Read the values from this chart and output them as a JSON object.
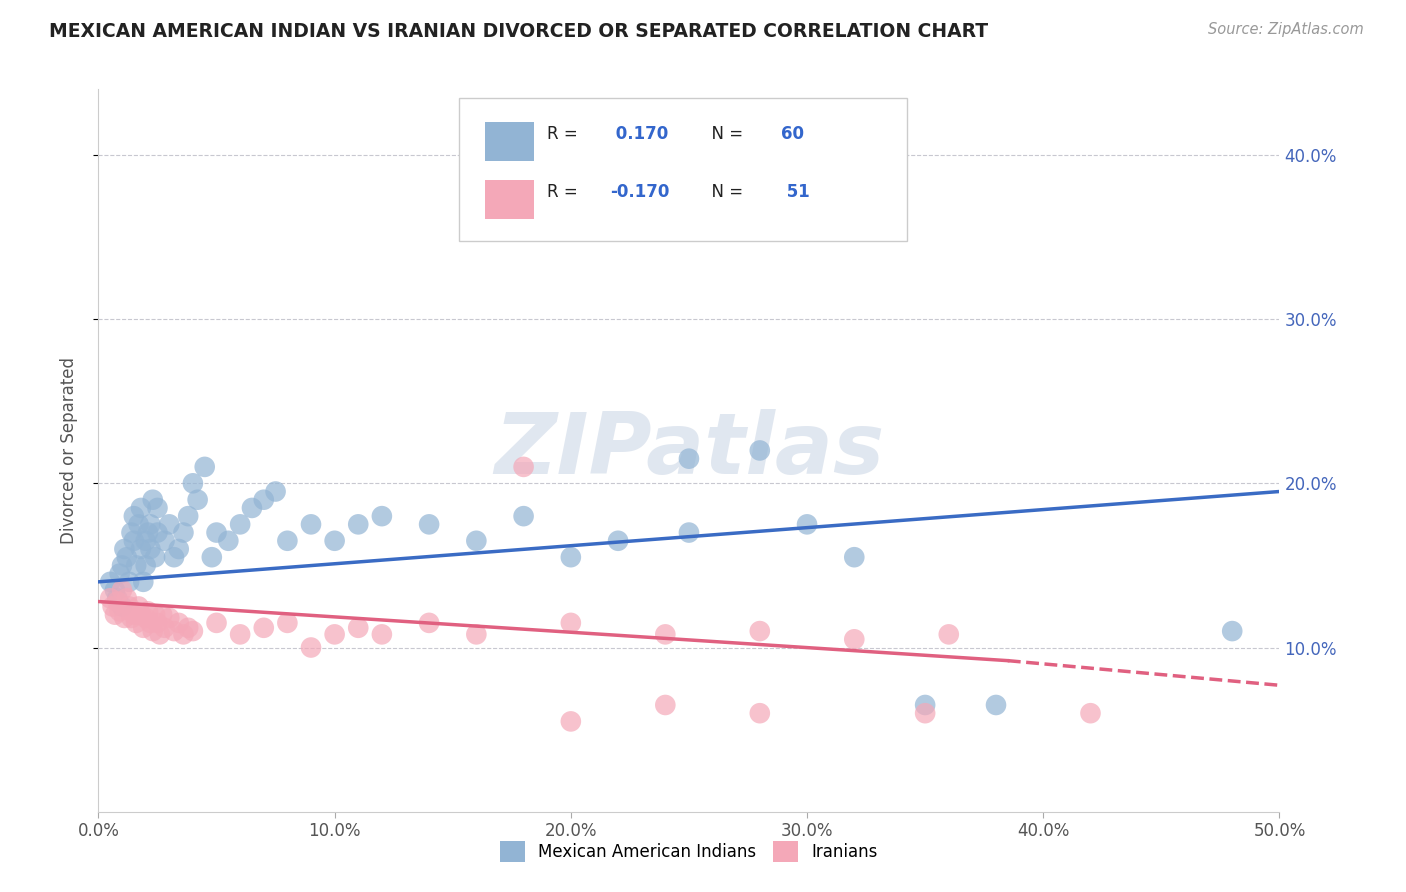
{
  "title": "MEXICAN AMERICAN INDIAN VS IRANIAN DIVORCED OR SEPARATED CORRELATION CHART",
  "source": "Source: ZipAtlas.com",
  "ylabel": "Divorced or Separated",
  "xlim": [
    0.0,
    0.5
  ],
  "ylim": [
    0.0,
    0.44
  ],
  "xtick_vals": [
    0.0,
    0.1,
    0.2,
    0.3,
    0.4,
    0.5
  ],
  "xtick_labels": [
    "0.0%",
    "10.0%",
    "20.0%",
    "30.0%",
    "40.0%",
    "50.0%"
  ],
  "ytick_vals": [
    0.1,
    0.2,
    0.3,
    0.4
  ],
  "ytick_labels": [
    "10.0%",
    "20.0%",
    "30.0%",
    "40.0%"
  ],
  "blue_R": 0.17,
  "blue_N": 60,
  "pink_R": -0.17,
  "pink_N": 51,
  "blue_color": "#92b4d4",
  "pink_color": "#f4a8b8",
  "blue_line_color": "#3a6bc4",
  "pink_line_color": "#e06080",
  "blue_line": {
    "x0": 0.0,
    "x1": 0.5,
    "y0": 0.14,
    "y1": 0.195
  },
  "pink_line_solid": {
    "x0": 0.0,
    "x1": 0.385,
    "y0": 0.128,
    "y1": 0.092
  },
  "pink_line_dash": {
    "x0": 0.385,
    "x1": 0.5,
    "y0": 0.092,
    "y1": 0.077
  },
  "watermark": "ZIPatlas",
  "blue_scatter_x": [
    0.005,
    0.007,
    0.008,
    0.009,
    0.01,
    0.01,
    0.011,
    0.012,
    0.013,
    0.014,
    0.015,
    0.015,
    0.016,
    0.017,
    0.018,
    0.018,
    0.019,
    0.02,
    0.02,
    0.021,
    0.022,
    0.022,
    0.023,
    0.024,
    0.025,
    0.025,
    0.028,
    0.03,
    0.032,
    0.034,
    0.036,
    0.038,
    0.04,
    0.042,
    0.045,
    0.048,
    0.05,
    0.055,
    0.06,
    0.065,
    0.07,
    0.075,
    0.08,
    0.09,
    0.1,
    0.11,
    0.12,
    0.14,
    0.16,
    0.18,
    0.2,
    0.22,
    0.25,
    0.28,
    0.3,
    0.32,
    0.35,
    0.38,
    0.48,
    0.25
  ],
  "blue_scatter_y": [
    0.14,
    0.135,
    0.13,
    0.145,
    0.15,
    0.125,
    0.16,
    0.155,
    0.14,
    0.17,
    0.165,
    0.18,
    0.15,
    0.175,
    0.16,
    0.185,
    0.14,
    0.15,
    0.165,
    0.17,
    0.16,
    0.175,
    0.19,
    0.155,
    0.17,
    0.185,
    0.165,
    0.175,
    0.155,
    0.16,
    0.17,
    0.18,
    0.2,
    0.19,
    0.21,
    0.155,
    0.17,
    0.165,
    0.175,
    0.185,
    0.19,
    0.195,
    0.165,
    0.175,
    0.165,
    0.175,
    0.18,
    0.175,
    0.165,
    0.18,
    0.155,
    0.165,
    0.17,
    0.22,
    0.175,
    0.155,
    0.065,
    0.065,
    0.11,
    0.215
  ],
  "pink_scatter_x": [
    0.005,
    0.006,
    0.007,
    0.008,
    0.009,
    0.01,
    0.011,
    0.012,
    0.013,
    0.014,
    0.015,
    0.016,
    0.017,
    0.018,
    0.019,
    0.02,
    0.021,
    0.022,
    0.023,
    0.024,
    0.025,
    0.026,
    0.027,
    0.028,
    0.03,
    0.032,
    0.034,
    0.036,
    0.038,
    0.04,
    0.05,
    0.06,
    0.07,
    0.08,
    0.09,
    0.1,
    0.11,
    0.12,
    0.14,
    0.16,
    0.18,
    0.2,
    0.24,
    0.28,
    0.32,
    0.36,
    0.28,
    0.24,
    0.2,
    0.35,
    0.42
  ],
  "pink_scatter_y": [
    0.13,
    0.125,
    0.12,
    0.128,
    0.122,
    0.135,
    0.118,
    0.13,
    0.125,
    0.118,
    0.12,
    0.115,
    0.125,
    0.12,
    0.112,
    0.118,
    0.122,
    0.115,
    0.11,
    0.12,
    0.115,
    0.108,
    0.12,
    0.112,
    0.118,
    0.11,
    0.115,
    0.108,
    0.112,
    0.11,
    0.115,
    0.108,
    0.112,
    0.115,
    0.1,
    0.108,
    0.112,
    0.108,
    0.115,
    0.108,
    0.21,
    0.115,
    0.108,
    0.11,
    0.105,
    0.108,
    0.06,
    0.065,
    0.055,
    0.06,
    0.06
  ]
}
